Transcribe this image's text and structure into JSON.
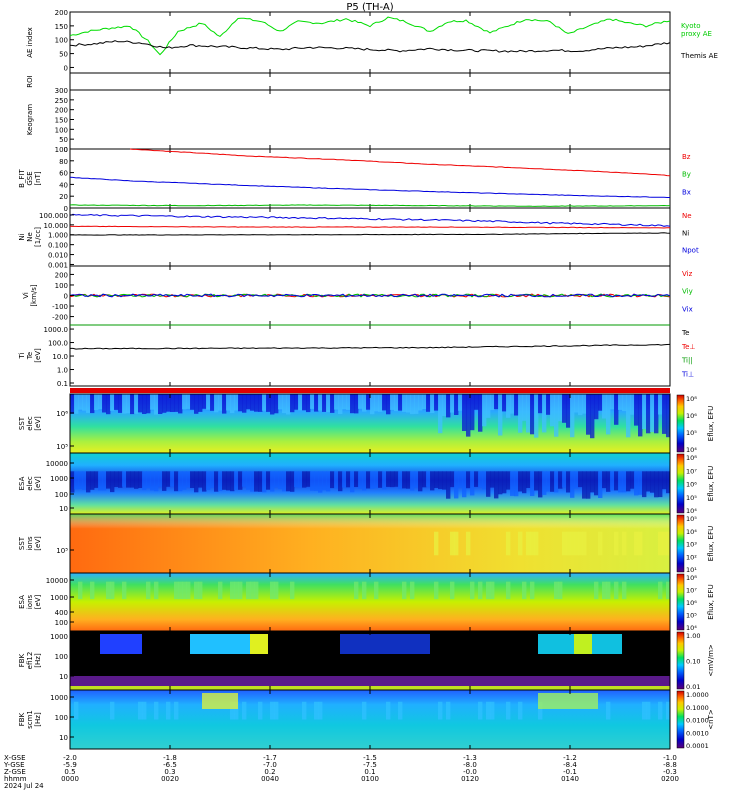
{
  "title": "P5 (TH-A)",
  "chart_data": [
    {
      "type": "line",
      "id": "ae",
      "ylabel": [
        "AE index"
      ],
      "ylim": [
        -20,
        200
      ],
      "yticks": [
        "0",
        "50",
        "100",
        "150",
        "200"
      ],
      "series": [
        {
          "name": "Kyoto proxy AE",
          "color": "#00dd00",
          "x": [
            0,
            0.03,
            0.06,
            0.1,
            0.13,
            0.15,
            0.18,
            0.22,
            0.25,
            0.28,
            0.32,
            0.35,
            0.38,
            0.42,
            0.46,
            0.5,
            0.53,
            0.56,
            0.6,
            0.63,
            0.66,
            0.7,
            0.73,
            0.76,
            0.8,
            0.83,
            0.86,
            0.9,
            0.93,
            0.96,
            1.0
          ],
          "values": [
            115,
            130,
            140,
            150,
            95,
            45,
            130,
            160,
            110,
            180,
            165,
            130,
            165,
            160,
            175,
            150,
            180,
            165,
            130,
            165,
            170,
            125,
            150,
            175,
            165,
            120,
            145,
            175,
            160,
            150,
            170
          ]
        },
        {
          "name": "Themis AE",
          "color": "#000000",
          "x": [
            0,
            0.04,
            0.08,
            0.12,
            0.16,
            0.2,
            0.25,
            0.3,
            0.35,
            0.4,
            0.45,
            0.5,
            0.55,
            0.6,
            0.65,
            0.7,
            0.75,
            0.8,
            0.85,
            0.9,
            0.95,
            1.0
          ],
          "values": [
            80,
            85,
            95,
            88,
            70,
            80,
            75,
            70,
            65,
            72,
            70,
            65,
            60,
            68,
            62,
            60,
            58,
            62,
            60,
            70,
            75,
            90
          ]
        }
      ],
      "legend": [
        "Kyoto",
        "proxy AE",
        "Themis AE"
      ]
    },
    {
      "type": "heatmap",
      "id": "roi",
      "ylabel": [
        "ROI"
      ],
      "values": []
    },
    {
      "type": "heatmap",
      "id": "keogram",
      "ylabel": [
        "Keogram"
      ],
      "ylim": [
        0,
        300
      ],
      "yticks": [
        "0",
        "50",
        "100",
        "150",
        "200",
        "250",
        "300"
      ],
      "values": []
    },
    {
      "type": "line",
      "id": "bfield",
      "ylabel": [
        "B_FIT",
        "GSE",
        "[nT]"
      ],
      "ylim": [
        0,
        100
      ],
      "yticks": [
        "0",
        "20",
        "40",
        "60",
        "80",
        "100"
      ],
      "series": [
        {
          "name": "Bz",
          "color": "#ee0000",
          "x": [
            0.1,
            0.2,
            0.3,
            0.45,
            0.6,
            0.75,
            0.9,
            1.0
          ],
          "values": [
            100,
            94,
            88,
            82,
            74,
            68,
            61,
            55
          ]
        },
        {
          "name": "By",
          "color": "#00bb00",
          "x": [
            0,
            0.2,
            0.4,
            0.6,
            0.8,
            1.0
          ],
          "values": [
            5,
            4,
            5,
            4,
            3,
            4
          ]
        },
        {
          "name": "Bx",
          "color": "#0000dd",
          "x": [
            0,
            0.1,
            0.3,
            0.5,
            0.7,
            0.85,
            1.0
          ],
          "values": [
            52,
            46,
            38,
            31,
            25,
            21,
            18
          ]
        }
      ],
      "legend": [
        "Bz",
        "By",
        "Bx"
      ]
    },
    {
      "type": "line",
      "id": "density",
      "ylabel": [
        "Ni",
        "Ne",
        "[1/cc]"
      ],
      "scale": "log",
      "ylim": [
        0.0007,
        500
      ],
      "yticks": [
        "0.001",
        "0.010",
        "0.100",
        "1.000",
        "10.000",
        "100.000"
      ],
      "series": [
        {
          "name": "Ne",
          "color": "#ee0000",
          "x": [
            0,
            0.3,
            0.6,
            0.8,
            1.0
          ],
          "values": [
            7,
            6,
            6,
            5.5,
            5
          ]
        },
        {
          "name": "Ni",
          "color": "#000000",
          "x": [
            0,
            0.4,
            0.7,
            0.9,
            1.0
          ],
          "values": [
            0.95,
            1.0,
            1.1,
            1.4,
            1.5
          ]
        },
        {
          "name": "Npot",
          "color": "#0000dd",
          "x": [
            0,
            0.2,
            0.5,
            0.8,
            1.0
          ],
          "values": [
            100,
            70,
            40,
            15,
            8
          ]
        }
      ],
      "legend": [
        "Ne",
        "Ni",
        "Npot"
      ]
    },
    {
      "type": "line",
      "id": "velocity",
      "ylabel": [
        "Vi",
        "[km/s]"
      ],
      "ylim": [
        -280,
        280
      ],
      "yticks": [
        "-200",
        "-100",
        "0",
        "100",
        "200"
      ],
      "series": [
        {
          "name": "Viz",
          "color": "#ee0000",
          "x": [
            0,
            1
          ],
          "values": [
            0,
            0
          ]
        },
        {
          "name": "Viy",
          "color": "#00bb00",
          "x": [
            0,
            1
          ],
          "values": [
            0,
            0
          ]
        },
        {
          "name": "Vix",
          "color": "#0000dd",
          "x": [
            0,
            1
          ],
          "values": [
            0,
            0
          ]
        }
      ],
      "legend": [
        "Viz",
        "Viy",
        "Vix"
      ]
    },
    {
      "type": "line",
      "id": "temperature",
      "ylabel": [
        "Ti",
        "Te",
        "[eV]"
      ],
      "scale": "log",
      "ylim": [
        0.06,
        2000
      ],
      "yticks": [
        "0.1",
        "1.0",
        "10.0",
        "100.0",
        "1000.0"
      ],
      "series": [
        {
          "name": "Te",
          "color": "#000000",
          "x": [
            0,
            0.3,
            0.6,
            0.8,
            1.0
          ],
          "values": [
            35,
            38,
            42,
            55,
            70
          ]
        },
        {
          "name": "Ti",
          "color": "#009900",
          "x": [
            0,
            0.3,
            0.6,
            1.0
          ],
          "values": [
            2200,
            2400,
            2600,
            2800
          ]
        }
      ],
      "legend": [
        "Te",
        "Te⊥",
        "Ti||",
        "Ti⊥"
      ]
    },
    {
      "type": "heatmap",
      "id": "sst_e",
      "ylabel": [
        "SST",
        "elec",
        "[eV]"
      ],
      "yticks": [
        "10⁵",
        "10⁶"
      ],
      "colorbar": {
        "label": "Eflux, EFU",
        "ticks": [
          "10⁴",
          "10⁵",
          "10⁶",
          "10⁸"
        ]
      }
    },
    {
      "type": "heatmap",
      "id": "esa_e",
      "ylabel": [
        "ESA",
        "elec",
        "[eV]"
      ],
      "yticks": [
        "10",
        "100",
        "1000",
        "10000"
      ],
      "colorbar": {
        "label": "Eflux, EFU",
        "ticks": [
          "10⁴",
          "10⁵",
          "10⁶",
          "10⁷",
          "10⁸"
        ]
      }
    },
    {
      "type": "heatmap",
      "id": "sst_i",
      "ylabel": [
        "SST",
        "ions",
        "[eV]"
      ],
      "yticks": [
        "10⁵"
      ],
      "colorbar": {
        "label": "Eflux, EFU",
        "ticks": [
          "10¹",
          "10²",
          "10³",
          "10⁴",
          "10⁵"
        ]
      }
    },
    {
      "type": "heatmap",
      "id": "esa_i",
      "ylabel": [
        "ESA",
        "ions",
        "[eV]"
      ],
      "yticks": [
        "100",
        "400",
        "1000",
        "10000"
      ],
      "colorbar": {
        "label": "Eflux, EFU",
        "ticks": [
          "10⁴",
          "10⁵",
          "10⁶",
          "10⁷",
          "10⁸"
        ]
      }
    },
    {
      "type": "heatmap",
      "id": "fbk_e",
      "ylabel": [
        "FBK",
        "efi12",
        "[Hz]"
      ],
      "yticks": [
        "10",
        "100",
        "1000"
      ],
      "colorbar": {
        "label": "<mV/m>",
        "ticks": [
          "0.01",
          "0.10",
          "1.00"
        ]
      }
    },
    {
      "type": "heatmap",
      "id": "fbk_b",
      "ylabel": [
        "FBK",
        "scm1",
        "[Hz]"
      ],
      "yticks": [
        "10",
        "100",
        "1000"
      ],
      "colorbar": {
        "label": "<nT>",
        "ticks": [
          "0.0001",
          "0.0010",
          "0.0100",
          "0.1000",
          "1.0000"
        ]
      }
    }
  ],
  "x_axis": {
    "row_labels": [
      "X-GSE",
      "Y-GSE",
      "Z-GSE",
      "hhmm",
      "2024 Jul 24"
    ],
    "columns": [
      [
        "-2.0",
        "-5.9",
        "0.5",
        "0000"
      ],
      [
        "-1.8",
        "-6.5",
        "0.3",
        "0020"
      ],
      [
        "-1.7",
        "-7.0",
        "0.2",
        "0040"
      ],
      [
        "-1.5",
        "-7.5",
        "0.1",
        "0100"
      ],
      [
        "-1.3",
        "-8.0",
        "-0.0",
        "0120"
      ],
      [
        "-1.2",
        "-8.4",
        "-0.1",
        "0140"
      ],
      [
        "-1.0",
        "-8.8",
        "-0.3",
        "0200"
      ]
    ]
  }
}
